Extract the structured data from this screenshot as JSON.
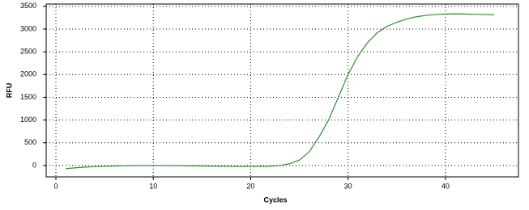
{
  "chart_data": {
    "type": "line",
    "xlabel": "Cycles",
    "ylabel": "RFU",
    "xlim": [
      -1,
      47.5
    ],
    "ylim": [
      -250,
      3550
    ],
    "xticks": [
      0,
      10,
      20,
      30,
      40
    ],
    "yticks": [
      0,
      500,
      1000,
      1500,
      2000,
      2500,
      3000,
      3500
    ],
    "grid": true,
    "series": [
      {
        "color": "#2e8b2e",
        "x": [
          1,
          2,
          3,
          4,
          5,
          6,
          7,
          8,
          9,
          10,
          11,
          12,
          13,
          14,
          15,
          16,
          17,
          18,
          19,
          20,
          21,
          22,
          23,
          24,
          25,
          26,
          27,
          28,
          29,
          30,
          31,
          32,
          33,
          34,
          35,
          36,
          37,
          38,
          39,
          40,
          41,
          42,
          43,
          44,
          45
        ],
        "values": [
          -70,
          -50,
          -35,
          -25,
          -15,
          -10,
          -5,
          -3,
          0,
          0,
          0,
          -2,
          -5,
          -8,
          -10,
          -12,
          -15,
          -18,
          -20,
          -20,
          -20,
          -15,
          0,
          40,
          120,
          300,
          620,
          1000,
          1500,
          2000,
          2400,
          2700,
          2920,
          3060,
          3150,
          3220,
          3270,
          3300,
          3320,
          3330,
          3335,
          3330,
          3325,
          3320,
          3315
        ]
      }
    ]
  }
}
